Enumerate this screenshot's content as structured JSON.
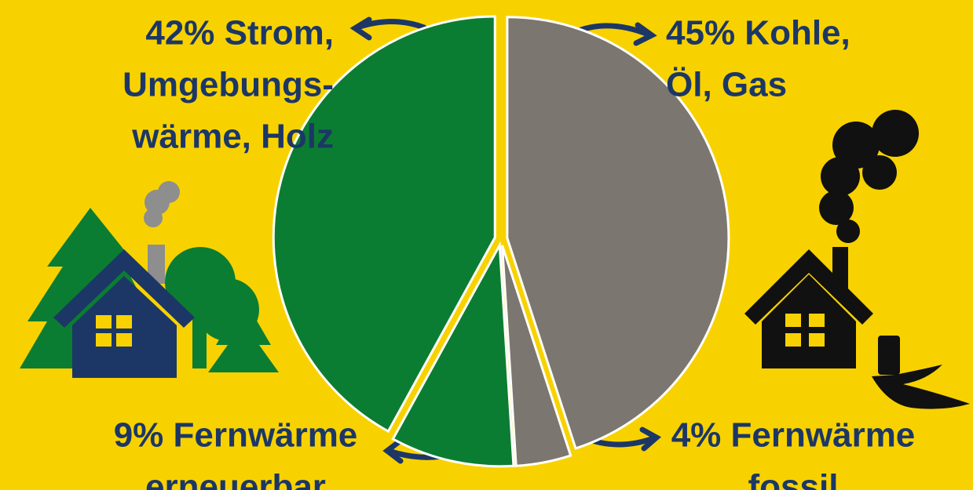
{
  "chart_data": {
    "type": "pie",
    "labels": [
      [
        "45% Kohle,",
        "Öl, Gas"
      ],
      [
        "4% Fernwärme",
        "fossil"
      ],
      [
        "9% Fernwärme",
        "erneuerbar"
      ],
      [
        "42% Strom,",
        "Umgebungs-",
        "wärme, Holz"
      ]
    ],
    "values": [
      45,
      4,
      9,
      42
    ],
    "colors": [
      "#7b7670",
      "#7b7670",
      "#0b7d32",
      "#0b7d32"
    ]
  }
}
